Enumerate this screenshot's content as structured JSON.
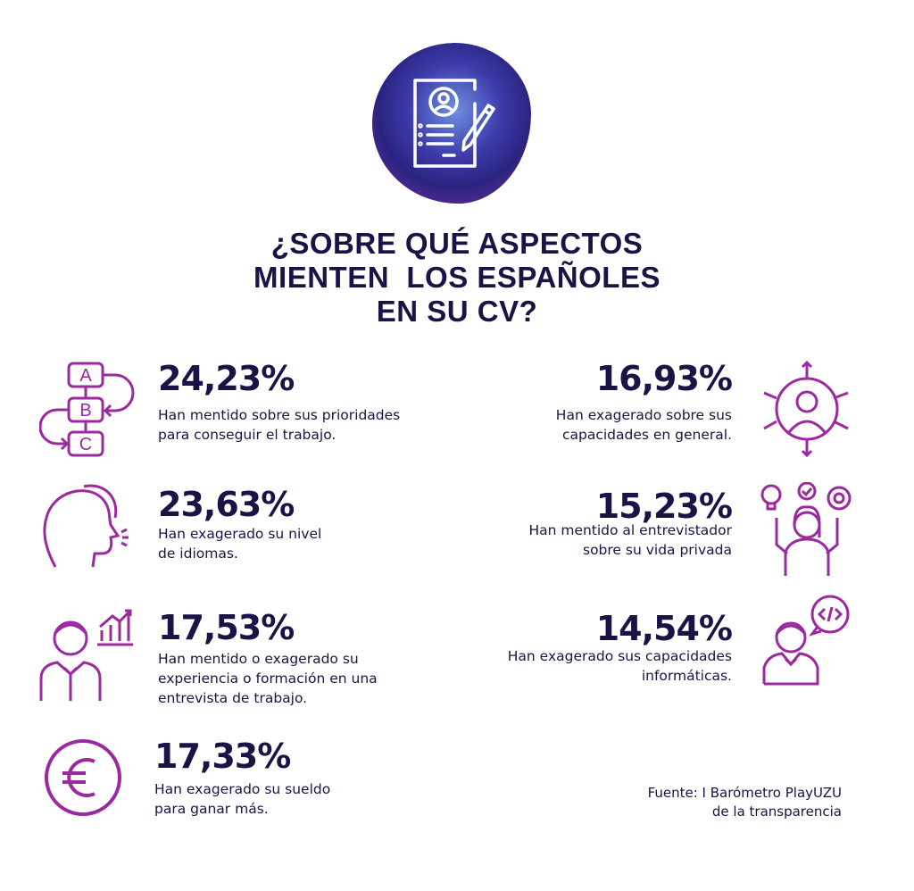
{
  "title": [
    "¿SOBRE QUÉ ASPECTOS",
    "MIENTEN  LOS ESPAÑOLES",
    "EN SU CV?"
  ],
  "colors": {
    "navy": "#1a1446",
    "purple": "#9b2a9e"
  },
  "left_items": [
    {
      "icon": "abc-priorities-icon",
      "pct": "24,23%",
      "desc": [
        "Han mentido sobre sus prioridades",
        "para conseguir el trabajo."
      ]
    },
    {
      "icon": "speaking-head-icon",
      "pct": "23,63%",
      "desc": [
        "Han exagerado su nivel",
        "de idiomas."
      ]
    },
    {
      "icon": "presenter-chart-icon",
      "pct": "17,53%",
      "desc": [
        "Han mentido o exagerado su",
        "experiencia o formación en una",
        "entrevista de trabajo."
      ]
    },
    {
      "icon": "euro-icon",
      "pct": "17,33%",
      "desc": [
        "Han exagerado su sueldo",
        "para ganar más."
      ]
    }
  ],
  "right_items": [
    {
      "icon": "person-arrows-icon",
      "pct": "16,93%",
      "desc": [
        "Han exagerado sobre sus",
        "capacidades en general."
      ]
    },
    {
      "icon": "woman-ideas-icon",
      "pct": "15,23%",
      "desc": [
        "Han mentido al entrevistador",
        "sobre su vida privada"
      ]
    },
    {
      "icon": "person-code-icon",
      "pct": "14,54%",
      "desc": [
        "Han exagerado sus capacidades",
        "informáticas."
      ]
    }
  ],
  "source": [
    "Fuente: I Barómetro PlayUZU",
    "de la transparencia"
  ],
  "abc_letters": [
    "A",
    "B",
    "C"
  ]
}
